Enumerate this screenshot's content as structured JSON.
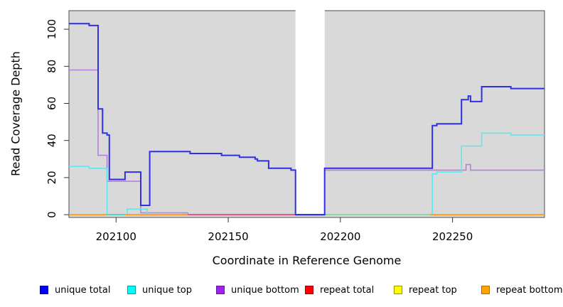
{
  "chart_data": {
    "type": "line",
    "subtype": "step-after",
    "title": "",
    "xlabel": "Coordinate in Reference Genome",
    "ylabel": "Read Coverage Depth",
    "x_range": [
      202079,
      202291
    ],
    "y_range": [
      -1.5,
      110
    ],
    "x_ticks": [
      202100,
      202150,
      202200,
      202250
    ],
    "y_ticks": [
      0,
      20,
      40,
      60,
      80,
      100
    ],
    "grid": "off",
    "plot_bg_color": "#d9d9d9",
    "frame_color": "#4d4d4d",
    "gap_band": {
      "from": 202180,
      "to": 202193,
      "color": "#ffffff"
    },
    "series": [
      {
        "name": "unique bottom",
        "color": "#b87fdd",
        "width": 1.6,
        "points": [
          [
            202079,
            78
          ],
          [
            202092,
            32
          ],
          [
            202096,
            18
          ],
          [
            202111,
            1
          ],
          [
            202132,
            0
          ],
          [
            202193,
            24
          ],
          [
            202256,
            27
          ],
          [
            202258,
            24
          ],
          [
            202291,
            24
          ]
        ]
      },
      {
        "name": "unique top",
        "color": "#5ee7ee",
        "width": 1.6,
        "points": [
          [
            202079,
            26
          ],
          [
            202088,
            25
          ],
          [
            202096,
            0
          ],
          [
            202105,
            3
          ],
          [
            202114,
            0
          ],
          [
            202241,
            22
          ],
          [
            202243,
            23
          ],
          [
            202254,
            37
          ],
          [
            202263,
            44
          ],
          [
            202276,
            43
          ],
          [
            202291,
            43
          ]
        ]
      },
      {
        "name": "unique total",
        "color": "#2f2fe3",
        "width": 2,
        "points": [
          [
            202079,
            103
          ],
          [
            202088,
            102
          ],
          [
            202092,
            57
          ],
          [
            202094,
            44
          ],
          [
            202096,
            43
          ],
          [
            202097,
            19
          ],
          [
            202104,
            23
          ],
          [
            202111,
            5
          ],
          [
            202115,
            34
          ],
          [
            202133,
            33
          ],
          [
            202147,
            32
          ],
          [
            202155,
            31
          ],
          [
            202162,
            30
          ],
          [
            202163,
            29
          ],
          [
            202168,
            25
          ],
          [
            202178,
            24
          ],
          [
            202180,
            0
          ],
          [
            202193,
            25
          ],
          [
            202241,
            48
          ],
          [
            202243,
            49
          ],
          [
            202254,
            62
          ],
          [
            202257,
            64
          ],
          [
            202258,
            61
          ],
          [
            202263,
            69
          ],
          [
            202276,
            68
          ],
          [
            202291,
            68
          ]
        ]
      }
    ],
    "baseline_segments": [
      {
        "name": "repeat bottom",
        "from": 202079,
        "to": 202096,
        "color": "#ff9d24",
        "width": 2
      },
      {
        "name": "unique top at zero",
        "from": 202096,
        "to": 202104,
        "color": "#53cfc0",
        "width": 1.8
      },
      {
        "name": "repeat bottom",
        "from": 202104,
        "to": 202132,
        "color": "#ff9d24",
        "width": 2
      },
      {
        "name": "repeat total at zero",
        "from": 202132,
        "to": 202180,
        "color": "#e1527e",
        "width": 1.8
      },
      {
        "name": "unique total at zero",
        "from": 202180,
        "to": 202193,
        "color": "#4b3bd8",
        "width": 2
      },
      {
        "name": "repeat top at zero",
        "from": 202193,
        "to": 202240,
        "color": "#8ed6a2",
        "width": 1.8
      },
      {
        "name": "repeat bottom",
        "from": 202240,
        "to": 202291,
        "color": "#ff9d24",
        "width": 2
      }
    ],
    "legend": [
      {
        "label": "unique total",
        "fill": "#0000ff",
        "border": "#000099"
      },
      {
        "label": "unique top",
        "fill": "#00ffff",
        "border": "#009999"
      },
      {
        "label": "unique bottom",
        "fill": "#a020f0",
        "border": "#661a99"
      },
      {
        "label": "repeat total",
        "fill": "#ff0000",
        "border": "#990000"
      },
      {
        "label": "repeat top",
        "fill": "#ffff00",
        "border": "#999900"
      },
      {
        "label": "repeat bottom",
        "fill": "#ffa500",
        "border": "#b36b00"
      }
    ]
  }
}
